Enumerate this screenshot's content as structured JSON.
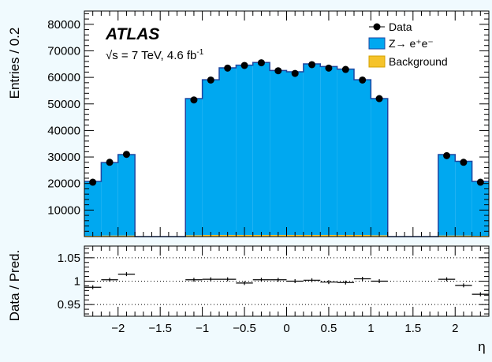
{
  "chart_data": [
    {
      "type": "bar",
      "panel": "main",
      "xlabel": "η",
      "ylabel": "Entries / 0.2",
      "xlim": [
        -2.4,
        2.4
      ],
      "ylim": [
        0,
        85000
      ],
      "yticks": [
        10000,
        20000,
        30000,
        40000,
        50000,
        60000,
        70000,
        80000
      ],
      "bin_edges": [
        -2.4,
        -2.2,
        -2.0,
        -1.8,
        -1.6,
        -1.4,
        -1.2,
        -1.0,
        -0.8,
        -0.6,
        -0.4,
        -0.2,
        0.0,
        0.2,
        0.4,
        0.6,
        0.8,
        1.0,
        1.2,
        1.4,
        1.6,
        1.8,
        2.0,
        2.2,
        2.4
      ],
      "series": [
        {
          "name": "Data",
          "style": "points",
          "color": "#000000",
          "values": [
            20500,
            28000,
            31000,
            0,
            0,
            0,
            51500,
            59000,
            63500,
            64500,
            65500,
            62500,
            61500,
            64800,
            63500,
            63000,
            59000,
            52000,
            0,
            0,
            0,
            30500,
            28000,
            20500
          ]
        },
        {
          "name": "Z→ e⁺e⁻",
          "style": "filled",
          "color": "#00a8f0",
          "values": [
            20500,
            27500,
            30500,
            0,
            0,
            0,
            51500,
            58500,
            63000,
            64000,
            65000,
            62000,
            61500,
            64500,
            63500,
            62500,
            58500,
            51500,
            0,
            0,
            0,
            30500,
            28000,
            20500
          ]
        },
        {
          "name": "Background",
          "style": "filled",
          "color": "#f5c32a",
          "values": [
            300,
            400,
            400,
            0,
            0,
            0,
            500,
            600,
            600,
            600,
            600,
            600,
            600,
            600,
            600,
            600,
            600,
            500,
            0,
            0,
            0,
            400,
            400,
            300
          ]
        }
      ],
      "annotations": {
        "experiment": "ATLAS",
        "energy_lumi": "√s = 7 TeV, 4.6 fb",
        "lumi_exponent": "-1"
      },
      "legend_position": "top-right"
    },
    {
      "type": "scatter",
      "panel": "ratio",
      "xlabel": "η",
      "ylabel": "Data / Pred.",
      "xlim": [
        -2.4,
        2.4
      ],
      "ylim": [
        0.925,
        1.075
      ],
      "yticks": [
        0.95,
        1,
        1.05
      ],
      "ytick_labels": [
        "0.95",
        "1",
        "1.05"
      ],
      "xticks": [
        -2,
        -1.5,
        -1,
        -0.5,
        0,
        0.5,
        1,
        1.5,
        2
      ],
      "xtick_labels": [
        "−2",
        "−1.5",
        "−1",
        "−0.5",
        "0",
        "0.5",
        "1",
        "1.5",
        "2"
      ],
      "dotted_gridlines": [
        0.95,
        1,
        1.05
      ],
      "x": [
        -2.3,
        -2.1,
        -1.9,
        -1.1,
        -0.9,
        -0.7,
        -0.5,
        -0.3,
        -0.1,
        0.1,
        0.3,
        0.5,
        0.7,
        0.9,
        1.1,
        1.9,
        2.1,
        2.3
      ],
      "values": [
        0.987,
        1.003,
        1.015,
        1.003,
        1.004,
        1.004,
        0.996,
        1.003,
        1.003,
        1.0,
        1.002,
        0.998,
        0.997,
        1.005,
        1.0,
        1.004,
        0.991,
        0.972
      ]
    }
  ],
  "legend": [
    {
      "label": "Data",
      "kind": "marker",
      "color": "#000000"
    },
    {
      "label": "Z→ e⁺e⁻",
      "kind": "box",
      "color": "#00a8f0"
    },
    {
      "label": "Background",
      "kind": "box",
      "color": "#f5c32a"
    }
  ],
  "colors": {
    "background": "#f0fafe",
    "plot_area": "#ffffff",
    "signal_fill": "#00a8f0",
    "signal_line": "#1e46a0",
    "background_fill": "#f5c32a",
    "background_line": "#d4a000"
  }
}
